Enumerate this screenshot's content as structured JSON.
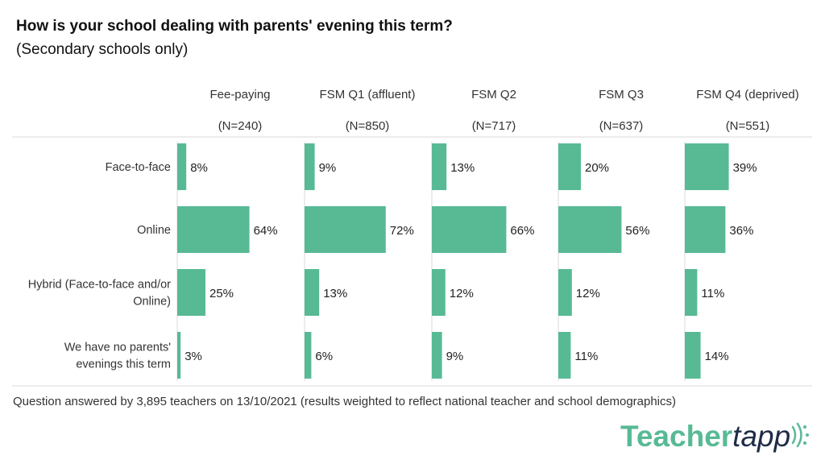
{
  "title": "How is your school dealing with parents' evening this term?",
  "subtitle": "(Secondary schools only)",
  "footnote": "Question answered by 3,895 teachers on 13/10/2021 (results weighted to reflect national teacher and school demographics)",
  "logo": {
    "part1": "Teacher",
    "part2": "tapp"
  },
  "colors": {
    "bar": "#58ba95",
    "logo_green": "#58ba95",
    "logo_dark": "#1f2b48",
    "divider": "#d9d9d9"
  },
  "chart_data": {
    "type": "bar",
    "orientation": "horizontal",
    "layout": "small-multiples",
    "categories": [
      "Face-to-face",
      "Online",
      "Hybrid (Face-to-face and/or Online)",
      "We have no parents' evenings this term"
    ],
    "category_lines": [
      [
        "Face-to-face"
      ],
      [
        "Online"
      ],
      [
        "Hybrid (Face-to-face and/or",
        "Online)"
      ],
      [
        "We have no parents'",
        "evenings this term"
      ]
    ],
    "value_unit": "%",
    "series": [
      {
        "name": "Fee-paying",
        "n": "(N=240)",
        "values": [
          8,
          64,
          25,
          3
        ]
      },
      {
        "name": "FSM Q1 (affluent)",
        "n": "(N=850)",
        "values": [
          9,
          72,
          13,
          6
        ]
      },
      {
        "name": "FSM Q2",
        "n": "(N=717)",
        "values": [
          13,
          66,
          12,
          9
        ]
      },
      {
        "name": "FSM Q3",
        "n": "(N=637)",
        "values": [
          20,
          56,
          12,
          11
        ]
      },
      {
        "name": "FSM Q4 (deprived)",
        "n": "(N=551)",
        "values": [
          39,
          36,
          11,
          14
        ]
      }
    ]
  }
}
